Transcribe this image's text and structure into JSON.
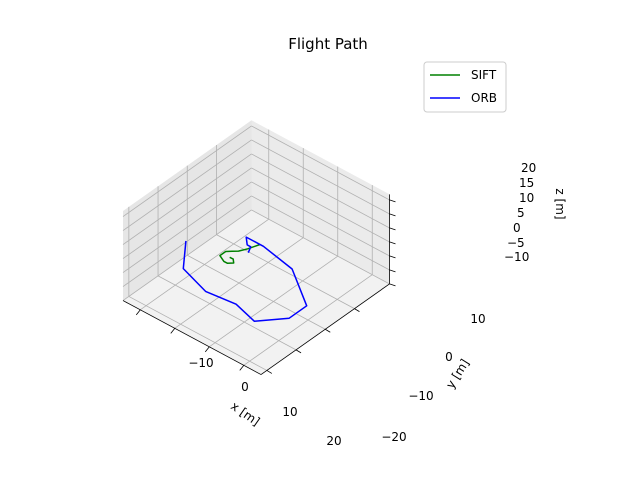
{
  "chart_data": {
    "type": "line",
    "projection": "3d",
    "title": "Flight Path",
    "xlabel": "x [m]",
    "ylabel": "y [m]",
    "zlabel": "z [m]",
    "xlim": [
      -15,
      25
    ],
    "ylim": [
      -22,
      22
    ],
    "zlim": [
      -10,
      22
    ],
    "xticks": [
      "−10",
      "0",
      "10",
      "20"
    ],
    "yticks": [
      "−20",
      "−10",
      "0",
      "10"
    ],
    "zticks": [
      "−10",
      "−5",
      "0",
      "5",
      "10",
      "15",
      "20"
    ],
    "grid": true,
    "legend_position": "top-right",
    "series": [
      {
        "name": "SIFT",
        "color": "#008000",
        "points": [
          [
            1,
            6,
            0
          ],
          [
            0,
            3,
            0
          ],
          [
            -1,
            1,
            0
          ],
          [
            -2,
            0,
            0
          ],
          [
            -3,
            -1,
            0
          ],
          [
            -3,
            -3,
            0
          ],
          [
            -1,
            -4,
            0
          ],
          [
            0,
            -4,
            0
          ],
          [
            1,
            -3,
            0
          ],
          [
            0,
            -2,
            0
          ],
          [
            -1,
            -2,
            0
          ]
        ]
      },
      {
        "name": "ORB",
        "color": "#0000ff",
        "points": [
          [
            -12,
            -4,
            0
          ],
          [
            -6,
            -12,
            0
          ],
          [
            3,
            -15,
            0
          ],
          [
            11,
            -14,
            0
          ],
          [
            18,
            -16,
            0
          ],
          [
            23,
            -10,
            0
          ],
          [
            23,
            -4,
            0
          ],
          [
            12,
            4,
            0
          ],
          [
            2,
            6,
            0
          ],
          [
            -3,
            6,
            0
          ],
          [
            -1,
            4,
            0
          ],
          [
            0,
            4,
            0
          ],
          [
            1,
            2,
            0
          ]
        ]
      }
    ]
  }
}
